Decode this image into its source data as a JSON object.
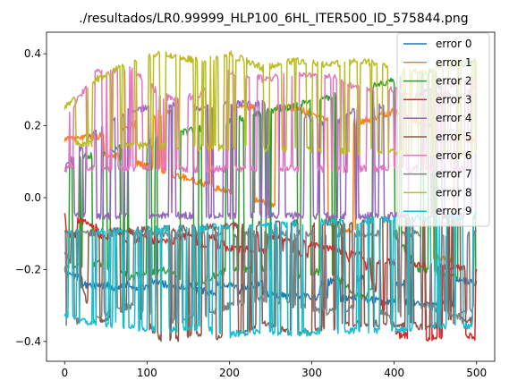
{
  "chart_data": {
    "type": "line",
    "title": "./resultados/LR0.99999_HLP100_6HL_ITER500_ID_575844.png",
    "xlabel": "",
    "ylabel": "",
    "xlim": [
      -22,
      522
    ],
    "ylim": [
      -0.455,
      0.46
    ],
    "xticks": [
      0,
      100,
      200,
      300,
      400,
      500
    ],
    "yticks": [
      -0.4,
      -0.2,
      0.0,
      0.2,
      0.4
    ],
    "xtick_labels": [
      "0",
      "100",
      "200",
      "300",
      "400",
      "500"
    ],
    "ytick_labels": [
      "−0.4",
      "−0.2",
      "0.0",
      "0.2",
      "0.4"
    ],
    "grid": false,
    "legend_position": "top-right",
    "x_start": 0,
    "x_end": 500,
    "series": [
      {
        "name": "error 0",
        "color": "#1f77b4",
        "keypoints": [
          [
            0,
            -0.21
          ],
          [
            20,
            -0.22
          ],
          [
            60,
            -0.25
          ],
          [
            100,
            -0.23
          ],
          [
            140,
            -0.25
          ],
          [
            180,
            -0.24
          ],
          [
            220,
            -0.25
          ],
          [
            260,
            -0.23
          ],
          [
            300,
            -0.25
          ],
          [
            340,
            -0.22
          ],
          [
            380,
            -0.23
          ],
          [
            420,
            -0.24
          ],
          [
            460,
            -0.22
          ],
          [
            500,
            -0.24
          ]
        ],
        "alt": [
          [
            0,
            -0.24
          ],
          [
            500,
            -0.3
          ]
        ],
        "switch_rate": 0.05
      },
      {
        "name": "error 1",
        "color": "#ff7f0e",
        "keypoints": [
          [
            0,
            0.16
          ],
          [
            40,
            0.17
          ],
          [
            80,
            0.2
          ],
          [
            120,
            0.24
          ],
          [
            160,
            0.25
          ],
          [
            200,
            0.25
          ],
          [
            240,
            0.25
          ],
          [
            280,
            0.25
          ],
          [
            320,
            0.22
          ],
          [
            360,
            0.21
          ],
          [
            400,
            0.24
          ],
          [
            440,
            0.2
          ],
          [
            480,
            0.17
          ],
          [
            500,
            0.15
          ]
        ],
        "alt": [
          [
            0,
            0.16
          ],
          [
            500,
            -0.2
          ]
        ],
        "switch_rate": 0.05
      },
      {
        "name": "error 2",
        "color": "#2ca02c",
        "keypoints": [
          [
            0,
            -0.2
          ],
          [
            40,
            -0.18
          ],
          [
            80,
            -0.22
          ],
          [
            120,
            -0.2
          ],
          [
            160,
            -0.24
          ],
          [
            200,
            -0.2
          ],
          [
            240,
            -0.2
          ],
          [
            280,
            -0.22
          ],
          [
            320,
            -0.2
          ],
          [
            360,
            -0.28
          ],
          [
            380,
            -0.24
          ],
          [
            400,
            -0.1
          ],
          [
            430,
            -0.2
          ],
          [
            470,
            -0.22
          ],
          [
            500,
            -0.24
          ]
        ],
        "alt": [
          [
            0,
            0.1
          ],
          [
            500,
            0.38
          ]
        ],
        "switch_rate": 0.1
      },
      {
        "name": "error 3",
        "color": "#d62728",
        "keypoints": [
          [
            0,
            -0.05
          ],
          [
            40,
            -0.08
          ],
          [
            80,
            -0.1
          ],
          [
            120,
            -0.12
          ],
          [
            160,
            -0.1
          ],
          [
            200,
            -0.12
          ],
          [
            240,
            -0.1
          ],
          [
            280,
            -0.12
          ],
          [
            320,
            -0.14
          ],
          [
            360,
            -0.16
          ],
          [
            400,
            -0.38
          ],
          [
            440,
            -0.39
          ],
          [
            480,
            -0.38
          ],
          [
            500,
            -0.39
          ]
        ],
        "alt": [
          [
            0,
            -0.1
          ],
          [
            500,
            -0.2
          ]
        ],
        "switch_rate": 0.1
      },
      {
        "name": "error 4",
        "color": "#9467bd",
        "keypoints": [
          [
            0,
            0.08
          ],
          [
            40,
            0.2
          ],
          [
            80,
            0.24
          ],
          [
            120,
            0.26
          ],
          [
            160,
            0.25
          ],
          [
            200,
            0.26
          ],
          [
            240,
            0.26
          ],
          [
            280,
            0.24
          ],
          [
            320,
            0.2
          ],
          [
            360,
            0.25
          ],
          [
            400,
            0.25
          ],
          [
            440,
            0.3
          ],
          [
            480,
            0.32
          ],
          [
            500,
            0.33
          ]
        ],
        "alt": [
          [
            0,
            -0.05
          ],
          [
            500,
            -0.05
          ]
        ],
        "switch_rate": 0.15
      },
      {
        "name": "error 5",
        "color": "#8c564b",
        "keypoints": [
          [
            0,
            -0.15
          ],
          [
            40,
            -0.35
          ],
          [
            80,
            -0.3
          ],
          [
            120,
            -0.4
          ],
          [
            160,
            -0.38
          ],
          [
            200,
            -0.39
          ],
          [
            240,
            -0.35
          ],
          [
            280,
            -0.38
          ],
          [
            320,
            -0.36
          ],
          [
            360,
            -0.35
          ],
          [
            400,
            -0.35
          ],
          [
            440,
            -0.36
          ],
          [
            480,
            -0.34
          ],
          [
            500,
            -0.34
          ]
        ],
        "alt": [
          [
            0,
            -0.1
          ],
          [
            500,
            -0.05
          ]
        ],
        "switch_rate": 0.15
      },
      {
        "name": "error 6",
        "color": "#e377c2",
        "keypoints": [
          [
            0,
            0.22
          ],
          [
            40,
            0.35
          ],
          [
            80,
            0.36
          ],
          [
            120,
            0.28
          ],
          [
            160,
            0.28
          ],
          [
            200,
            0.35
          ],
          [
            240,
            0.33
          ],
          [
            280,
            0.34
          ],
          [
            320,
            0.34
          ],
          [
            360,
            0.3
          ],
          [
            400,
            0.3
          ],
          [
            440,
            0.28
          ],
          [
            480,
            0.3
          ],
          [
            500,
            0.3
          ]
        ],
        "alt": [
          [
            0,
            0.08
          ],
          [
            500,
            0.08
          ]
        ],
        "switch_rate": 0.15
      },
      {
        "name": "error 7",
        "color": "#7f7f7f",
        "keypoints": [
          [
            0,
            -0.35
          ],
          [
            40,
            -0.33
          ],
          [
            80,
            -0.3
          ],
          [
            120,
            -0.35
          ],
          [
            160,
            -0.33
          ],
          [
            200,
            -0.3
          ],
          [
            240,
            -0.28
          ],
          [
            280,
            -0.3
          ],
          [
            320,
            -0.32
          ],
          [
            360,
            -0.3
          ],
          [
            400,
            -0.33
          ],
          [
            440,
            -0.3
          ],
          [
            480,
            -0.33
          ],
          [
            500,
            -0.3
          ]
        ],
        "alt": [
          [
            0,
            -0.1
          ],
          [
            500,
            -0.1
          ]
        ],
        "switch_rate": 0.15
      },
      {
        "name": "error 8",
        "color": "#bcbd22",
        "keypoints": [
          [
            0,
            0.25
          ],
          [
            40,
            0.33
          ],
          [
            80,
            0.38
          ],
          [
            120,
            0.4
          ],
          [
            160,
            0.38
          ],
          [
            200,
            0.4
          ],
          [
            240,
            0.36
          ],
          [
            280,
            0.38
          ],
          [
            320,
            0.37
          ],
          [
            360,
            0.38
          ],
          [
            400,
            0.36
          ],
          [
            440,
            0.35
          ],
          [
            480,
            0.38
          ],
          [
            500,
            0.38
          ]
        ],
        "alt": [
          [
            0,
            0.15
          ],
          [
            500,
            0.12
          ]
        ],
        "switch_rate": 0.15
      },
      {
        "name": "error 9",
        "color": "#17becf",
        "keypoints": [
          [
            0,
            -0.33
          ],
          [
            40,
            -0.35
          ],
          [
            80,
            -0.36
          ],
          [
            120,
            -0.37
          ],
          [
            160,
            -0.36
          ],
          [
            200,
            -0.38
          ],
          [
            240,
            -0.37
          ],
          [
            280,
            -0.38
          ],
          [
            320,
            -0.37
          ],
          [
            360,
            -0.37
          ],
          [
            400,
            -0.37
          ],
          [
            440,
            -0.36
          ],
          [
            480,
            -0.36
          ],
          [
            500,
            -0.35
          ]
        ],
        "alt": [
          [
            0,
            -0.1
          ],
          [
            500,
            -0.05
          ]
        ],
        "switch_rate": 0.18
      }
    ]
  }
}
